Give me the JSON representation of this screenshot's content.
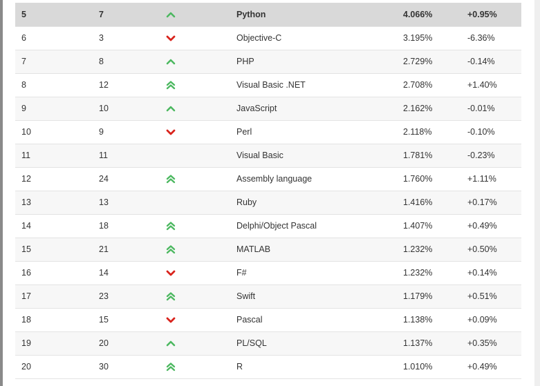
{
  "rows": [
    {
      "rank": "5",
      "prev": "7",
      "change": "up",
      "language": "Python",
      "rating": "4.066%",
      "delta": "+0.95%",
      "highlight": true
    },
    {
      "rank": "6",
      "prev": "3",
      "change": "down",
      "language": "Objective-C",
      "rating": "3.195%",
      "delta": "-6.36%"
    },
    {
      "rank": "7",
      "prev": "8",
      "change": "up",
      "language": "PHP",
      "rating": "2.729%",
      "delta": "-0.14%"
    },
    {
      "rank": "8",
      "prev": "12",
      "change": "double-up",
      "language": "Visual Basic .NET",
      "rating": "2.708%",
      "delta": "+1.40%"
    },
    {
      "rank": "9",
      "prev": "10",
      "change": "up",
      "language": "JavaScript",
      "rating": "2.162%",
      "delta": "-0.01%"
    },
    {
      "rank": "10",
      "prev": "9",
      "change": "down",
      "language": "Perl",
      "rating": "2.118%",
      "delta": "-0.10%"
    },
    {
      "rank": "11",
      "prev": "11",
      "change": "none",
      "language": "Visual Basic",
      "rating": "1.781%",
      "delta": "-0.23%"
    },
    {
      "rank": "12",
      "prev": "24",
      "change": "double-up",
      "language": "Assembly language",
      "rating": "1.760%",
      "delta": "+1.11%"
    },
    {
      "rank": "13",
      "prev": "13",
      "change": "none",
      "language": "Ruby",
      "rating": "1.416%",
      "delta": "+0.17%"
    },
    {
      "rank": "14",
      "prev": "18",
      "change": "double-up",
      "language": "Delphi/Object Pascal",
      "rating": "1.407%",
      "delta": "+0.49%"
    },
    {
      "rank": "15",
      "prev": "21",
      "change": "double-up",
      "language": "MATLAB",
      "rating": "1.232%",
      "delta": "+0.50%"
    },
    {
      "rank": "16",
      "prev": "14",
      "change": "down",
      "language": "F#",
      "rating": "1.232%",
      "delta": "+0.14%"
    },
    {
      "rank": "17",
      "prev": "23",
      "change": "double-up",
      "language": "Swift",
      "rating": "1.179%",
      "delta": "+0.51%"
    },
    {
      "rank": "18",
      "prev": "15",
      "change": "down",
      "language": "Pascal",
      "rating": "1.138%",
      "delta": "+0.09%"
    },
    {
      "rank": "19",
      "prev": "20",
      "change": "up",
      "language": "PL/SQL",
      "rating": "1.137%",
      "delta": "+0.35%"
    },
    {
      "rank": "20",
      "prev": "30",
      "change": "double-up",
      "language": "R",
      "rating": "1.010%",
      "delta": "+0.49%"
    }
  ],
  "colors": {
    "up": "#4cb860",
    "down": "#d9231c",
    "highlight_row": "#d9d9d9"
  }
}
